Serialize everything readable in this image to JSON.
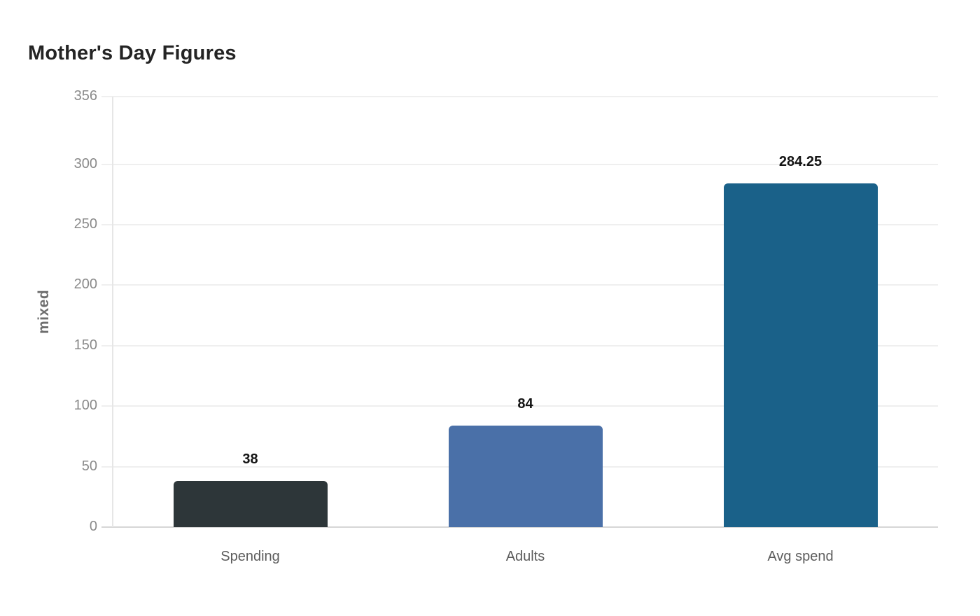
{
  "page": {
    "background_color": "#ffffff"
  },
  "chart_data": {
    "type": "bar",
    "title": "Mother's Day Figures",
    "ylabel": "mixed",
    "xlabel": "",
    "categories": [
      "Spending",
      "Adults",
      "Avg spend"
    ],
    "values": [
      38,
      84,
      284.25
    ],
    "value_labels": [
      "38",
      "84",
      "284.25"
    ],
    "bar_colors": [
      "#2d3639",
      "#4a70a8",
      "#1a6189"
    ],
    "yticks": [
      0,
      50,
      100,
      150,
      200,
      250,
      300,
      356
    ],
    "ylim": [
      0,
      356
    ],
    "grid": true,
    "legend": "none",
    "style": {
      "gridline_color": "#efefef",
      "bottom_axis_color": "#d6d6d6",
      "left_axis_color": "#e6e6e6",
      "tick_label_color": "#8a8a8a",
      "category_label_color": "#5c5c5c",
      "value_label_color": "#141414",
      "title_color": "#242424",
      "ylabel_color": "#6e6e6e"
    }
  }
}
